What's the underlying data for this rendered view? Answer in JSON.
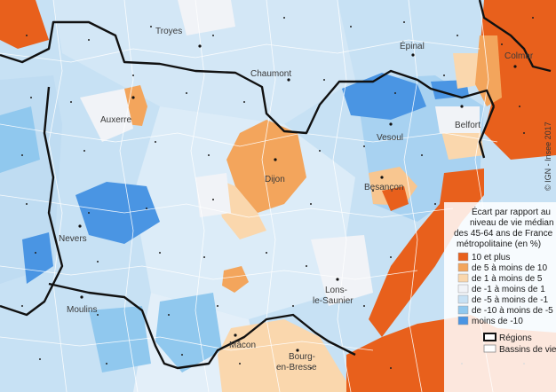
{
  "cities": [
    "Troyes",
    "Épinal",
    "Chaumont",
    "Colmar",
    "Auxerre",
    "Belfort",
    "Vesoul",
    "Dijon",
    "Besançon",
    "Nevers",
    "Lons-le-Saunier",
    "Moulins",
    "Mâcon",
    "Bourg-en-Bresse"
  ],
  "legend": {
    "title": [
      "Écart par rapport au",
      "niveau de vie médian",
      "des 45-64 ans de France",
      "métropolitaine (en %)"
    ],
    "classes": [
      {
        "label": "10 et plus",
        "color": "#e8601c"
      },
      {
        "label": "de 5 à moins de 10",
        "color": "#f3a55c"
      },
      {
        "label": "de 1 à moins de 5",
        "color": "#fad7ad"
      },
      {
        "label": "de -1 à moins de 1",
        "color": "#f1f3f7"
      },
      {
        "label": "de -5 à moins de -1",
        "color": "#c7e1f4"
      },
      {
        "label": "de -10 à moins de -5",
        "color": "#90c8ee"
      },
      {
        "label": "moins de -10",
        "color": "#4a95e3"
      }
    ],
    "boundaries": [
      "Régions",
      "Bassins de vie"
    ]
  },
  "credit": "© IGN - Insee 2017"
}
